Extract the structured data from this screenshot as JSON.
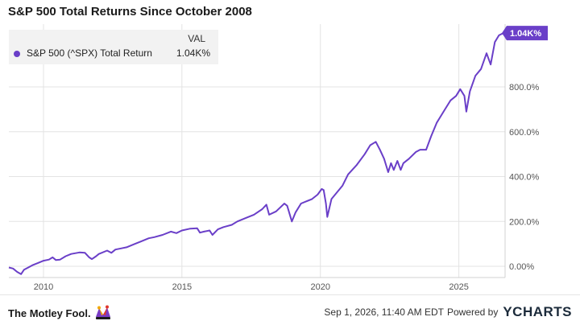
{
  "title": "S&P 500 Total Returns Since October 2008",
  "legend": {
    "header": "VAL",
    "series_name": "S&P 500 (^SPX) Total Return",
    "value": "1.04K%"
  },
  "footer": {
    "brand": "The Motley Fool.",
    "timestamp": "Sep 1, 2026, 11:40 AM EDT",
    "powered_by": "Powered by",
    "provider": "YCHARTS"
  },
  "colors": {
    "series": "#6a3fc8",
    "grid": "#e3e3e3",
    "axis_text": "#555555",
    "end_badge_text": "#ffffff"
  },
  "icons": [
    "jester-hat-icon",
    "ycharts-logo-icon"
  ],
  "chart_data": {
    "type": "line",
    "title": "S&P 500 Total Returns Since October 2008",
    "xlabel": "",
    "ylabel": "",
    "x_tick_labels": [
      "2010",
      "2015",
      "2020",
      "2025"
    ],
    "x_ticks": [
      2010,
      2015,
      2020,
      2025
    ],
    "y_tick_labels": [
      "0.00%",
      "200.0%",
      "400.0%",
      "600.0%",
      "800.0%"
    ],
    "y_ticks": [
      0,
      200,
      400,
      600,
      800
    ],
    "xlim": [
      2008.75,
      2026.67
    ],
    "ylim": [
      -50,
      1080
    ],
    "grid": true,
    "legend": "top-left",
    "end_label": "1.04K%",
    "series": [
      {
        "name": "S&P 500 (^SPX) Total Return",
        "x": [
          2008.75,
          2008.9,
          2009.05,
          2009.19,
          2009.3,
          2009.45,
          2009.6,
          2009.8,
          2010.0,
          2010.2,
          2010.33,
          2010.45,
          2010.6,
          2010.8,
          2011.0,
          2011.3,
          2011.5,
          2011.65,
          2011.75,
          2011.9,
          2012.0,
          2012.3,
          2012.45,
          2012.6,
          2012.8,
          2013.0,
          2013.3,
          2013.5,
          2013.8,
          2014.0,
          2014.3,
          2014.6,
          2014.8,
          2015.0,
          2015.3,
          2015.55,
          2015.65,
          2015.8,
          2016.0,
          2016.1,
          2016.3,
          2016.5,
          2016.8,
          2017.0,
          2017.3,
          2017.6,
          2017.9,
          2018.05,
          2018.15,
          2018.4,
          2018.7,
          2018.8,
          2018.97,
          2019.1,
          2019.3,
          2019.5,
          2019.7,
          2019.9,
          2020.05,
          2020.12,
          2020.2,
          2020.25,
          2020.4,
          2020.6,
          2020.8,
          2021.0,
          2021.3,
          2021.6,
          2021.8,
          2022.0,
          2022.15,
          2022.3,
          2022.45,
          2022.55,
          2022.65,
          2022.78,
          2022.9,
          2023.0,
          2023.2,
          2023.45,
          2023.6,
          2023.82,
          2024.0,
          2024.2,
          2024.3,
          2024.5,
          2024.7,
          2024.9,
          2025.05,
          2025.2,
          2025.27,
          2025.4,
          2025.6,
          2025.8,
          2026.0,
          2026.15,
          2026.3,
          2026.45,
          2026.6,
          2026.67
        ],
        "values": [
          -5,
          -10,
          -25,
          -35,
          -15,
          -5,
          5,
          15,
          25,
          30,
          40,
          28,
          30,
          45,
          55,
          62,
          60,
          40,
          32,
          45,
          55,
          70,
          60,
          75,
          80,
          85,
          100,
          110,
          125,
          130,
          140,
          155,
          148,
          160,
          168,
          170,
          150,
          155,
          160,
          140,
          165,
          175,
          185,
          200,
          215,
          230,
          255,
          275,
          230,
          245,
          280,
          270,
          200,
          240,
          280,
          290,
          300,
          320,
          345,
          340,
          280,
          220,
          300,
          330,
          360,
          410,
          450,
          500,
          540,
          555,
          520,
          480,
          420,
          460,
          430,
          470,
          430,
          460,
          480,
          510,
          520,
          520,
          580,
          640,
          660,
          700,
          740,
          760,
          790,
          760,
          690,
          780,
          850,
          880,
          950,
          900,
          1000,
          1030,
          1040,
          1040
        ]
      }
    ]
  }
}
